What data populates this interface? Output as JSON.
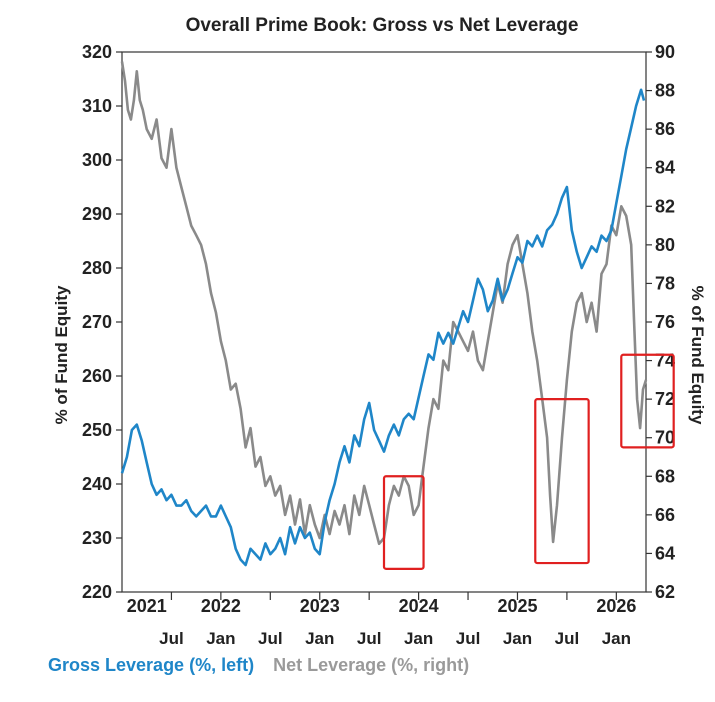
{
  "chart_data": {
    "type": "line",
    "title": "Overall Prime Book: Gross vs Net Leverage",
    "ylabel_left": "% of Fund Equity",
    "ylabel_right": "% of Fund Equity",
    "ylim_left": [
      220,
      320
    ],
    "yticks_left": [
      "220",
      "230",
      "240",
      "250",
      "260",
      "270",
      "280",
      "290",
      "300",
      "310",
      "320"
    ],
    "ylim_right": [
      62,
      90
    ],
    "yticks_right": [
      "62",
      "64",
      "66",
      "68",
      "70",
      "72",
      "74",
      "76",
      "78",
      "80",
      "82",
      "84",
      "86",
      "88",
      "90"
    ],
    "xlim": [
      2021.0,
      2026.3
    ],
    "year_labels": [
      {
        "label": "2021",
        "x": 2021.25
      },
      {
        "label": "2022",
        "x": 2022.0
      },
      {
        "label": "2023",
        "x": 2023.0
      },
      {
        "label": "2024",
        "x": 2024.0
      },
      {
        "label": "2025",
        "x": 2025.0
      },
      {
        "label": "2026",
        "x": 2026.0
      }
    ],
    "month_labels": [
      {
        "label": "Jul",
        "x": 2021.5
      },
      {
        "label": "Jan",
        "x": 2022.0
      },
      {
        "label": "Jul",
        "x": 2022.5
      },
      {
        "label": "Jan",
        "x": 2023.0
      },
      {
        "label": "Jul",
        "x": 2023.5
      },
      {
        "label": "Jan",
        "x": 2024.0
      },
      {
        "label": "Jul",
        "x": 2024.5
      },
      {
        "label": "Jan",
        "x": 2025.0
      },
      {
        "label": "Jul",
        "x": 2025.5
      },
      {
        "label": "Jan",
        "x": 2026.0
      }
    ],
    "series": [
      {
        "name": "Gross Leverage (%, left)",
        "axis": "left",
        "color": "#1f86c8",
        "points": [
          [
            2021.0,
            242
          ],
          [
            2021.05,
            245
          ],
          [
            2021.1,
            250
          ],
          [
            2021.15,
            251
          ],
          [
            2021.2,
            248
          ],
          [
            2021.25,
            244
          ],
          [
            2021.3,
            240
          ],
          [
            2021.35,
            238
          ],
          [
            2021.4,
            239
          ],
          [
            2021.45,
            237
          ],
          [
            2021.5,
            238
          ],
          [
            2021.55,
            236
          ],
          [
            2021.6,
            236
          ],
          [
            2021.65,
            237
          ],
          [
            2021.7,
            235
          ],
          [
            2021.75,
            234
          ],
          [
            2021.8,
            235
          ],
          [
            2021.85,
            236
          ],
          [
            2021.9,
            234
          ],
          [
            2021.95,
            234
          ],
          [
            2022.0,
            236
          ],
          [
            2022.05,
            234
          ],
          [
            2022.1,
            232
          ],
          [
            2022.15,
            228
          ],
          [
            2022.2,
            226
          ],
          [
            2022.25,
            225
          ],
          [
            2022.3,
            228
          ],
          [
            2022.35,
            227
          ],
          [
            2022.4,
            226
          ],
          [
            2022.45,
            229
          ],
          [
            2022.5,
            227
          ],
          [
            2022.55,
            228
          ],
          [
            2022.6,
            230
          ],
          [
            2022.65,
            227
          ],
          [
            2022.7,
            232
          ],
          [
            2022.75,
            229
          ],
          [
            2022.8,
            232
          ],
          [
            2022.85,
            230
          ],
          [
            2022.9,
            231
          ],
          [
            2022.95,
            228
          ],
          [
            2023.0,
            227
          ],
          [
            2023.05,
            233
          ],
          [
            2023.1,
            237
          ],
          [
            2023.15,
            240
          ],
          [
            2023.2,
            244
          ],
          [
            2023.25,
            247
          ],
          [
            2023.3,
            244
          ],
          [
            2023.35,
            249
          ],
          [
            2023.4,
            247
          ],
          [
            2023.45,
            252
          ],
          [
            2023.5,
            255
          ],
          [
            2023.55,
            250
          ],
          [
            2023.6,
            248
          ],
          [
            2023.65,
            246
          ],
          [
            2023.7,
            249
          ],
          [
            2023.75,
            251
          ],
          [
            2023.8,
            249
          ],
          [
            2023.85,
            252
          ],
          [
            2023.9,
            253
          ],
          [
            2023.95,
            252
          ],
          [
            2024.0,
            256
          ],
          [
            2024.05,
            260
          ],
          [
            2024.1,
            264
          ],
          [
            2024.15,
            263
          ],
          [
            2024.2,
            268
          ],
          [
            2024.25,
            266
          ],
          [
            2024.3,
            268
          ],
          [
            2024.35,
            266
          ],
          [
            2024.4,
            269
          ],
          [
            2024.45,
            272
          ],
          [
            2024.5,
            270
          ],
          [
            2024.55,
            274
          ],
          [
            2024.6,
            278
          ],
          [
            2024.65,
            276
          ],
          [
            2024.7,
            272
          ],
          [
            2024.75,
            274
          ],
          [
            2024.8,
            278
          ],
          [
            2024.85,
            274
          ],
          [
            2024.9,
            276
          ],
          [
            2024.95,
            279
          ],
          [
            2025.0,
            282
          ],
          [
            2025.05,
            281
          ],
          [
            2025.1,
            285
          ],
          [
            2025.15,
            284
          ],
          [
            2025.2,
            286
          ],
          [
            2025.25,
            284
          ],
          [
            2025.3,
            287
          ],
          [
            2025.35,
            288
          ],
          [
            2025.4,
            290
          ],
          [
            2025.45,
            293
          ],
          [
            2025.5,
            295
          ],
          [
            2025.55,
            287
          ],
          [
            2025.6,
            283
          ],
          [
            2025.65,
            280
          ],
          [
            2025.7,
            282
          ],
          [
            2025.75,
            284
          ],
          [
            2025.8,
            283
          ],
          [
            2025.85,
            286
          ],
          [
            2025.9,
            285
          ],
          [
            2025.95,
            287
          ],
          [
            2026.0,
            292
          ],
          [
            2026.05,
            297
          ],
          [
            2026.1,
            302
          ],
          [
            2026.15,
            306
          ],
          [
            2026.2,
            310
          ],
          [
            2026.25,
            313
          ],
          [
            2026.28,
            311
          ]
        ]
      },
      {
        "name": "Net Leverage (%, right)",
        "axis": "right",
        "color": "#8a8a8a",
        "points": [
          [
            2021.0,
            89.5
          ],
          [
            2021.03,
            88.5
          ],
          [
            2021.06,
            87.0
          ],
          [
            2021.09,
            86.5
          ],
          [
            2021.12,
            87.5
          ],
          [
            2021.15,
            89.0
          ],
          [
            2021.18,
            87.5
          ],
          [
            2021.21,
            87.0
          ],
          [
            2021.25,
            86.0
          ],
          [
            2021.3,
            85.5
          ],
          [
            2021.35,
            86.5
          ],
          [
            2021.4,
            84.5
          ],
          [
            2021.45,
            84.0
          ],
          [
            2021.5,
            86.0
          ],
          [
            2021.55,
            84.0
          ],
          [
            2021.6,
            83.0
          ],
          [
            2021.65,
            82.0
          ],
          [
            2021.7,
            81.0
          ],
          [
            2021.75,
            80.5
          ],
          [
            2021.8,
            80.0
          ],
          [
            2021.85,
            79.0
          ],
          [
            2021.9,
            77.5
          ],
          [
            2021.95,
            76.5
          ],
          [
            2022.0,
            75.0
          ],
          [
            2022.05,
            74.0
          ],
          [
            2022.1,
            72.5
          ],
          [
            2022.15,
            72.8
          ],
          [
            2022.2,
            71.5
          ],
          [
            2022.25,
            69.5
          ],
          [
            2022.3,
            70.5
          ],
          [
            2022.35,
            68.5
          ],
          [
            2022.4,
            69.0
          ],
          [
            2022.45,
            67.5
          ],
          [
            2022.5,
            68.0
          ],
          [
            2022.55,
            67.0
          ],
          [
            2022.6,
            67.5
          ],
          [
            2022.65,
            66.0
          ],
          [
            2022.7,
            67.0
          ],
          [
            2022.75,
            65.5
          ],
          [
            2022.8,
            66.8
          ],
          [
            2022.85,
            65.0
          ],
          [
            2022.9,
            66.5
          ],
          [
            2022.95,
            65.5
          ],
          [
            2023.0,
            64.8
          ],
          [
            2023.05,
            66.0
          ],
          [
            2023.1,
            65.0
          ],
          [
            2023.15,
            66.2
          ],
          [
            2023.2,
            65.5
          ],
          [
            2023.25,
            66.5
          ],
          [
            2023.3,
            65.0
          ],
          [
            2023.35,
            67.0
          ],
          [
            2023.4,
            66.0
          ],
          [
            2023.45,
            67.5
          ],
          [
            2023.5,
            66.5
          ],
          [
            2023.55,
            65.5
          ],
          [
            2023.6,
            64.5
          ],
          [
            2023.65,
            64.8
          ],
          [
            2023.7,
            66.5
          ],
          [
            2023.75,
            67.5
          ],
          [
            2023.8,
            67.0
          ],
          [
            2023.85,
            68.0
          ],
          [
            2023.9,
            67.5
          ],
          [
            2023.95,
            66.0
          ],
          [
            2024.0,
            66.5
          ],
          [
            2024.05,
            68.5
          ],
          [
            2024.1,
            70.5
          ],
          [
            2024.15,
            72.0
          ],
          [
            2024.2,
            71.5
          ],
          [
            2024.25,
            74.0
          ],
          [
            2024.3,
            73.5
          ],
          [
            2024.35,
            76.0
          ],
          [
            2024.4,
            75.5
          ],
          [
            2024.45,
            75.0
          ],
          [
            2024.5,
            74.5
          ],
          [
            2024.55,
            75.5
          ],
          [
            2024.6,
            74.0
          ],
          [
            2024.65,
            73.5
          ],
          [
            2024.7,
            75.0
          ],
          [
            2024.75,
            76.5
          ],
          [
            2024.8,
            78.0
          ],
          [
            2024.85,
            77.0
          ],
          [
            2024.9,
            79.0
          ],
          [
            2024.95,
            80.0
          ],
          [
            2025.0,
            80.5
          ],
          [
            2025.05,
            79.0
          ],
          [
            2025.1,
            77.5
          ],
          [
            2025.15,
            75.5
          ],
          [
            2025.2,
            74.0
          ],
          [
            2025.25,
            72.0
          ],
          [
            2025.3,
            70.0
          ],
          [
            2025.33,
            67.0
          ],
          [
            2025.36,
            64.6
          ],
          [
            2025.4,
            66.5
          ],
          [
            2025.45,
            70.0
          ],
          [
            2025.5,
            73.0
          ],
          [
            2025.55,
            75.5
          ],
          [
            2025.6,
            77.0
          ],
          [
            2025.65,
            77.5
          ],
          [
            2025.7,
            76.0
          ],
          [
            2025.75,
            77.0
          ],
          [
            2025.8,
            75.5
          ],
          [
            2025.85,
            78.5
          ],
          [
            2025.9,
            79.0
          ],
          [
            2025.95,
            81.0
          ],
          [
            2026.0,
            80.5
          ],
          [
            2026.05,
            82.0
          ],
          [
            2026.1,
            81.5
          ],
          [
            2026.15,
            80.0
          ],
          [
            2026.18,
            76.0
          ],
          [
            2026.21,
            72.0
          ],
          [
            2026.24,
            70.5
          ],
          [
            2026.27,
            72.5
          ],
          [
            2026.3,
            73.0
          ]
        ]
      }
    ],
    "highlights": [
      {
        "axis": "right",
        "x0": 2023.65,
        "x1": 2024.05,
        "y0": 63.2,
        "y1": 68.0
      },
      {
        "axis": "right",
        "x0": 2025.18,
        "x1": 2025.72,
        "y0": 63.5,
        "y1": 72.0
      },
      {
        "axis": "right",
        "x0": 2026.05,
        "x1": 2026.58,
        "y0": 69.5,
        "y1": 74.3
      }
    ],
    "legend": [
      {
        "label": "Gross Leverage (%, left)",
        "color": "#1f86c8"
      },
      {
        "label": "Net Leverage (%, right)",
        "color": "#9a9a9a"
      }
    ]
  }
}
